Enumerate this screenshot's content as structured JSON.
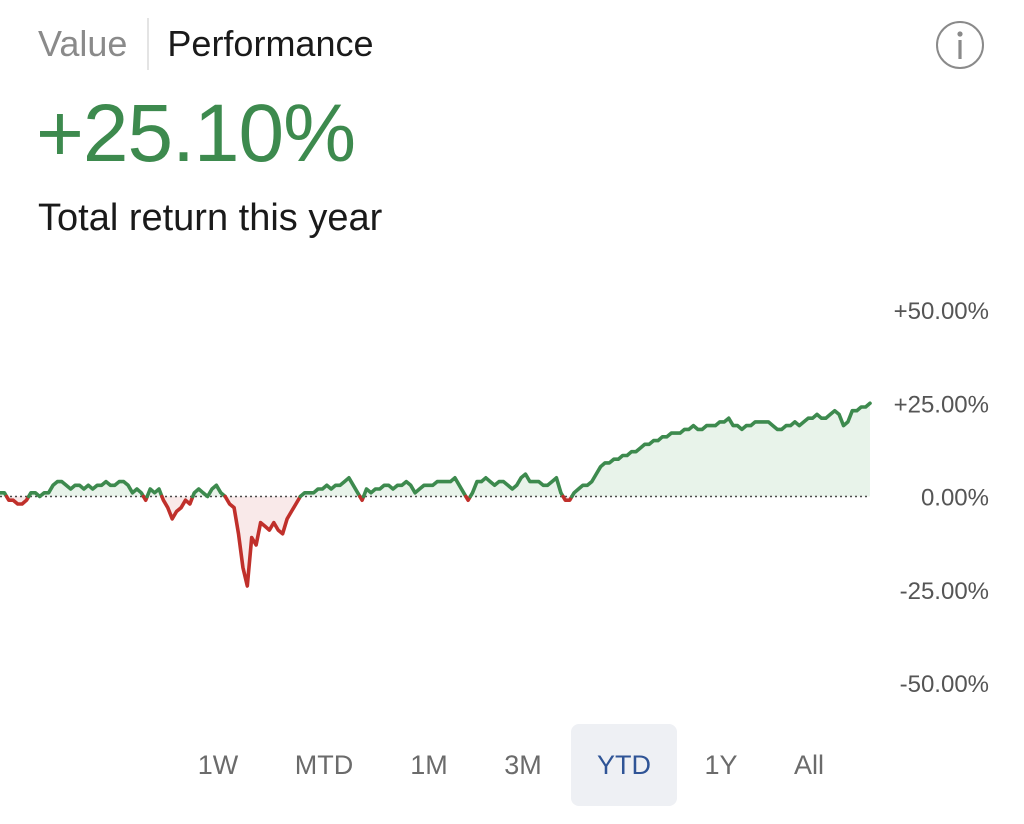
{
  "header": {
    "tabs": [
      {
        "label": "Value",
        "active": false
      },
      {
        "label": "Performance",
        "active": true
      }
    ],
    "info_icon": "info-icon"
  },
  "summary": {
    "value": "+25.10%",
    "label": "Total return this year"
  },
  "colors": {
    "positive": "#3d8a4e",
    "negative": "#c0302b",
    "positive_fill": "#e6f2e8",
    "negative_fill": "#f8e4e4",
    "accent": "#2f5496"
  },
  "chart_data": {
    "type": "line",
    "title": "",
    "xlabel": "",
    "ylabel": "",
    "ylim": [
      -50,
      50
    ],
    "y_ticks": [
      "+50.00%",
      "+25.00%",
      "0.00%",
      "-25.00%",
      "-50.00%"
    ],
    "y_tick_values": [
      50,
      25,
      0,
      -25,
      -50
    ],
    "baseline": 0,
    "series": [
      {
        "name": "YTD return",
        "values": [
          1,
          1,
          -1,
          -1,
          -2,
          -2,
          -1,
          1,
          1,
          0,
          1,
          1,
          3,
          4,
          4,
          3,
          2,
          3,
          3,
          2,
          3,
          2,
          3,
          3,
          4,
          3,
          3,
          4,
          4,
          3,
          1,
          2,
          1,
          -1,
          2,
          1,
          2,
          -1,
          -3,
          -6,
          -4,
          -3,
          -1,
          -2,
          1,
          2,
          1,
          0,
          2,
          3,
          1,
          0,
          -2,
          -3,
          -10,
          -19,
          -24,
          -11,
          -13,
          -7,
          -8,
          -9,
          -7,
          -9,
          -10,
          -6,
          -4,
          -2,
          0,
          1,
          1,
          1,
          2,
          2,
          3,
          2,
          3,
          3,
          4,
          5,
          3,
          1,
          -1,
          2,
          1,
          2,
          2,
          3,
          3,
          2,
          3,
          3,
          4,
          3,
          1,
          2,
          3,
          3,
          3,
          4,
          4,
          4,
          4,
          5,
          3,
          1,
          -1,
          1,
          4,
          4,
          5,
          4,
          3,
          4,
          4,
          3,
          2,
          3,
          5,
          6,
          4,
          4,
          4,
          3,
          3,
          4,
          5,
          1,
          -1,
          -1,
          1,
          2,
          3,
          3,
          4,
          6,
          8,
          9,
          9,
          10,
          10,
          11,
          11,
          12,
          12,
          13,
          14,
          14,
          15,
          15,
          16,
          16,
          17,
          17,
          17,
          18,
          18,
          19,
          18,
          18,
          19,
          19,
          19,
          20,
          20,
          21,
          19,
          19,
          18,
          19,
          19,
          20,
          20,
          20,
          20,
          19,
          18,
          18,
          19,
          19,
          20,
          19,
          20,
          21,
          21,
          22,
          21,
          21,
          22,
          23,
          22,
          19,
          20,
          23,
          23,
          24,
          24,
          25
        ]
      }
    ]
  },
  "ranges": {
    "options": [
      "1W",
      "MTD",
      "1M",
      "3M",
      "YTD",
      "1Y",
      "All"
    ],
    "selected": "YTD"
  }
}
